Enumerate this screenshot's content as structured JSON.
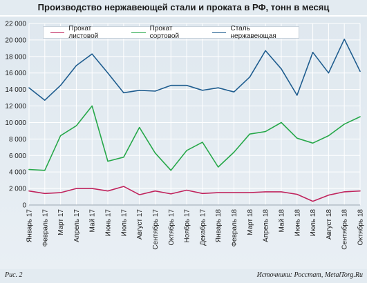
{
  "title": "Производство нержавеющей стали и проката в РФ, тонн в месяц",
  "footer": {
    "figure_label": "Рис. 2",
    "source": "Источники: Росстат, MetalTorg.Ru"
  },
  "colors": {
    "sheet": "#c0245d",
    "section": "#27a84a",
    "steel": "#1f5d8f",
    "grid": "#ffffff",
    "axis_text": "#1b1b1b"
  },
  "chart_data": {
    "type": "line",
    "title": "Производство нержавеющей стали и проката в РФ, тонн в месяц",
    "xlabel": "",
    "ylabel": "",
    "ylim": [
      0,
      22000
    ],
    "yticks": [
      0,
      2000,
      4000,
      6000,
      8000,
      10000,
      12000,
      14000,
      16000,
      18000,
      20000,
      22000
    ],
    "ytick_labels": [
      "0",
      "2 000",
      "4 000",
      "6 000",
      "8 000",
      "10 000",
      "12 000",
      "14 000",
      "16 000",
      "18 000",
      "20 000",
      "22 000"
    ],
    "grid": true,
    "legend_position": "top-left",
    "categories": [
      "Январь 17",
      "Февраль 17",
      "Март 17",
      "Апрель 17",
      "Май 17",
      "Июнь 17",
      "Июль 17",
      "Август 17",
      "Сентябрь 17",
      "Октябрь 17",
      "Ноябрь 17",
      "Декабрь 17",
      "Январь 18",
      "Февраль 18",
      "Март 18",
      "Апрель 18",
      "Май 18",
      "Июнь 18",
      "Июль 18",
      "Август 18",
      "Сентябрь 18",
      "Октябрь 18"
    ],
    "series": [
      {
        "name": "Прокат листовой",
        "color": "#c0245d",
        "values": [
          1700,
          1400,
          1500,
          2000,
          2000,
          1700,
          2250,
          1250,
          1700,
          1350,
          1800,
          1400,
          1500,
          1500,
          1500,
          1600,
          1600,
          1300,
          450,
          1200,
          1600,
          1700
        ]
      },
      {
        "name": "Прокат сортовой",
        "color": "#27a84a",
        "values": [
          4300,
          4200,
          8400,
          9600,
          12000,
          5300,
          5800,
          9400,
          6300,
          4200,
          6600,
          7600,
          4600,
          6400,
          8600,
          8900,
          10000,
          8100,
          7500,
          8400,
          9800,
          10700
        ]
      },
      {
        "name": "Сталь нержавеющая",
        "color": "#1f5d8f",
        "values": [
          14200,
          12700,
          14500,
          16900,
          18300,
          16000,
          13600,
          13900,
          13800,
          14500,
          14500,
          13900,
          14200,
          13700,
          15500,
          18700,
          16500,
          13300,
          18500,
          16000,
          20100,
          16200
        ]
      }
    ]
  }
}
